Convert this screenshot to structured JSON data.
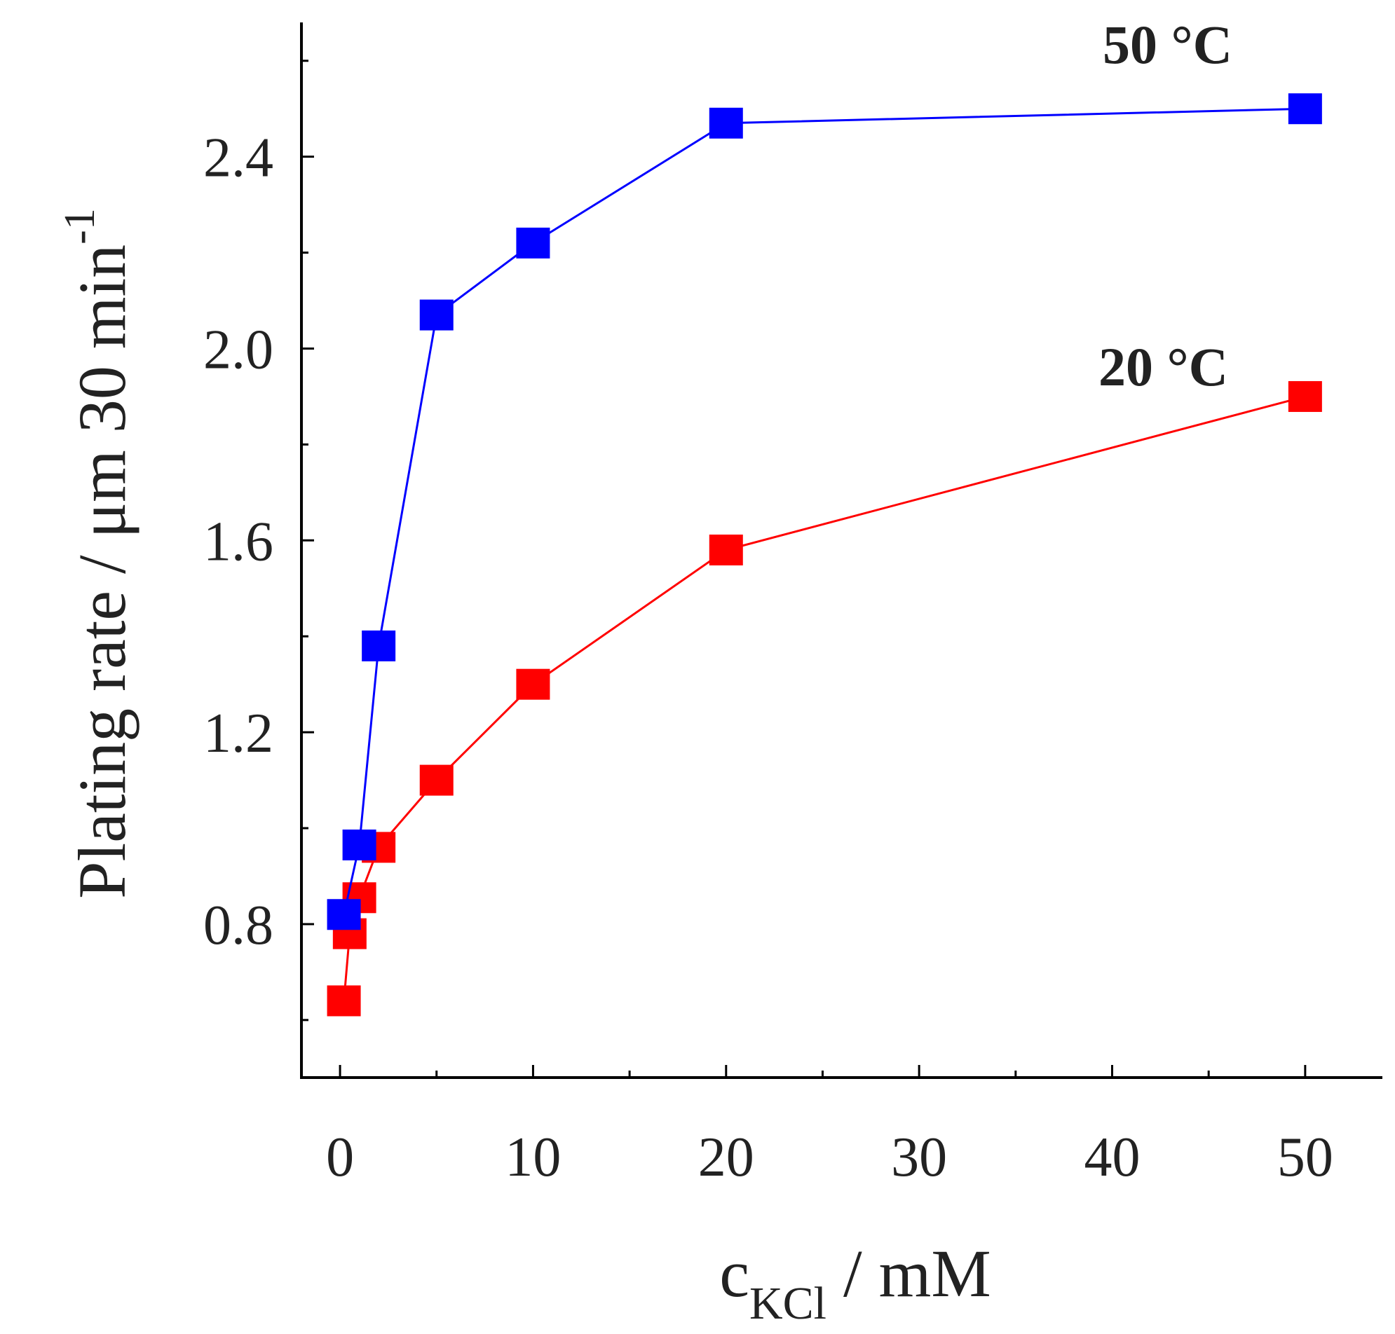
{
  "chart_data": {
    "type": "line",
    "title": "",
    "xlabel": {
      "main": "c",
      "sub": "KCl",
      "rest": " / mM"
    },
    "ylabel": "Plating rate / μm 30 min",
    "ylabel_sup": "-1",
    "xlim": [
      -2,
      54
    ],
    "ylim": [
      0.48,
      2.68
    ],
    "x_ticks": [
      0,
      10,
      20,
      30,
      40,
      50
    ],
    "x_tick_labels": [
      "0",
      "10",
      "20",
      "30",
      "40",
      "50"
    ],
    "y_ticks": [
      0.8,
      1.2,
      1.6,
      2.0,
      2.4
    ],
    "y_tick_labels": [
      "0.8",
      "1.2",
      "1.6",
      "2.0",
      "2.4"
    ],
    "grid": false,
    "series": [
      {
        "name": "20 °C",
        "color": "#ff0000",
        "marker": "square",
        "x": [
          0.2,
          0.5,
          1,
          2,
          5,
          10,
          20,
          50
        ],
        "values": [
          0.64,
          0.78,
          0.855,
          0.96,
          1.1,
          1.3,
          1.58,
          1.9
        ]
      },
      {
        "name": "50 °C",
        "color": "#0000ff",
        "marker": "square",
        "x": [
          0.2,
          1,
          2,
          5,
          10,
          20,
          50
        ],
        "values": [
          0.82,
          0.965,
          1.38,
          2.07,
          2.22,
          2.47,
          2.5
        ]
      }
    ]
  }
}
